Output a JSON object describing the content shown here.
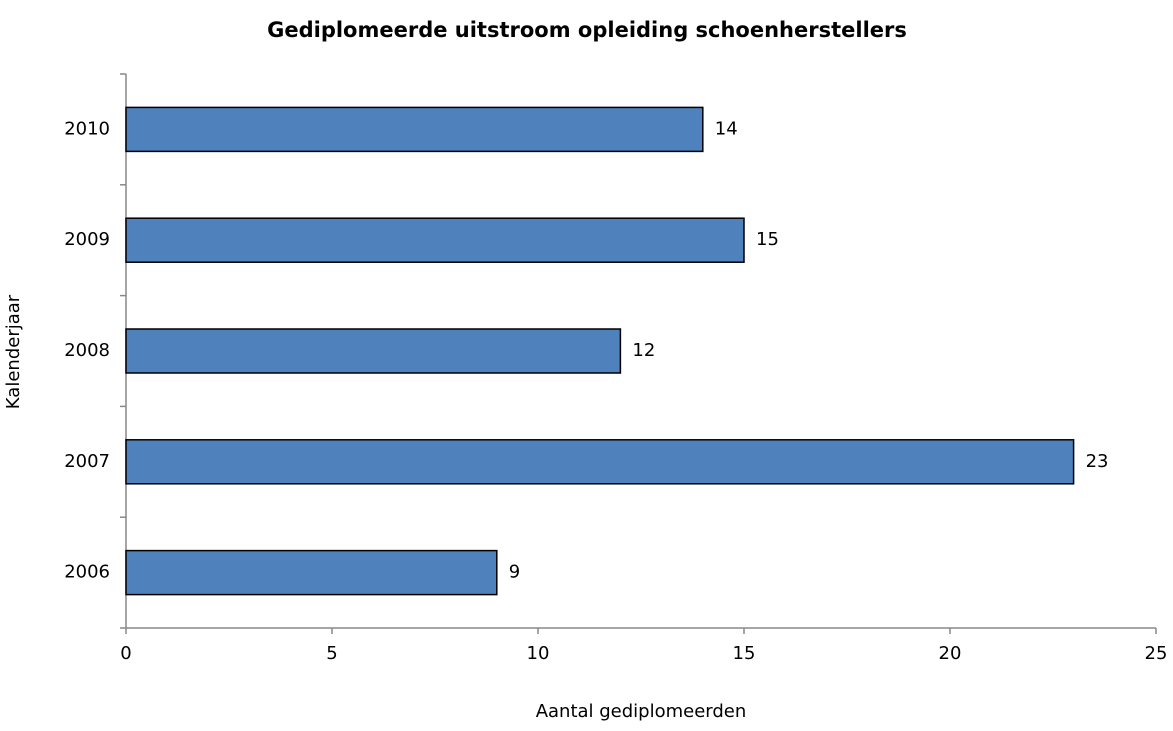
{
  "chart_data": {
    "type": "barh",
    "title": "Gediplomeerde uitstroom opleiding schoenherstellers",
    "xlabel": "Aantal gediplomeerden",
    "ylabel": "Kalenderjaar",
    "categories": [
      "2006",
      "2007",
      "2008",
      "2009",
      "2010"
    ],
    "values": [
      9,
      23,
      12,
      15,
      14
    ],
    "color": "#4f81bd",
    "xlim": [
      0,
      25
    ],
    "xticks": [
      0,
      5,
      10,
      15,
      20,
      25
    ],
    "grid": false
  }
}
